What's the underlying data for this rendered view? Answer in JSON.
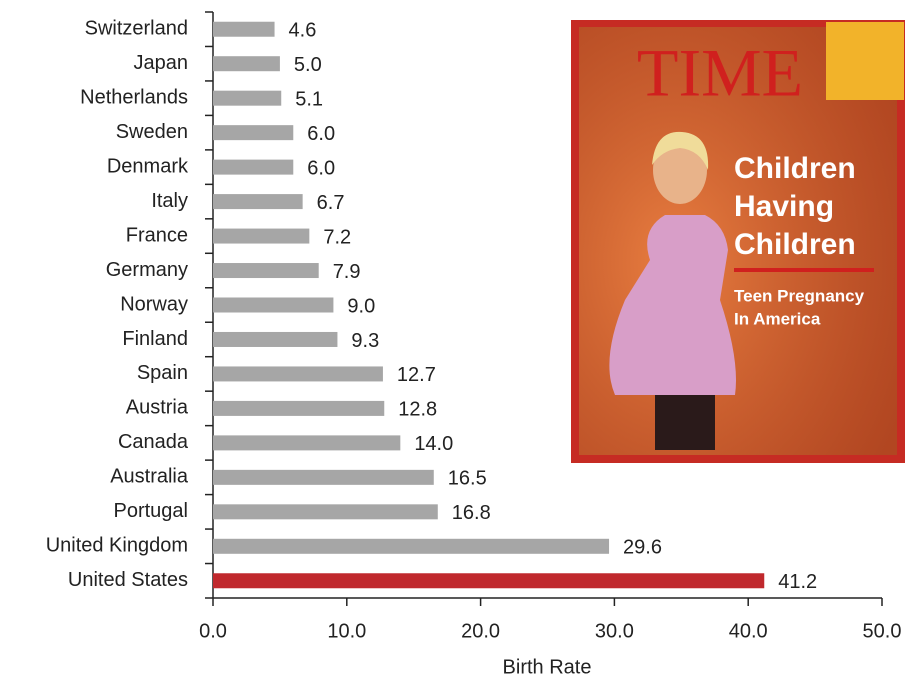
{
  "chart_data": {
    "type": "barh",
    "x_label": "Birth Rate",
    "categories": [
      "Switzerland",
      "Japan",
      "Netherlands",
      "Sweden",
      "Denmark",
      "Italy",
      "France",
      "Germany",
      "Norway",
      "Finland",
      "Spain",
      "Austria",
      "Canada",
      "Australia",
      "Portugal",
      "United Kingdom",
      "United States"
    ],
    "values": [
      4.6,
      5.0,
      5.1,
      6.0,
      6.0,
      6.7,
      7.2,
      7.9,
      9.0,
      9.3,
      12.7,
      12.8,
      14.0,
      16.5,
      16.8,
      29.6,
      41.2
    ],
    "value_labels": [
      "4.6",
      "5.0",
      "5.1",
      "6.0",
      "6.0",
      "6.7",
      "7.2",
      "7.9",
      "9.0",
      "9.3",
      "12.7",
      "12.8",
      "14.0",
      "16.5",
      "16.8",
      "29.6",
      "41.2"
    ],
    "colors": [
      "#a6a6a6",
      "#a6a6a6",
      "#a6a6a6",
      "#a6a6a6",
      "#a6a6a6",
      "#a6a6a6",
      "#a6a6a6",
      "#a6a6a6",
      "#a6a6a6",
      "#a6a6a6",
      "#a6a6a6",
      "#a6a6a6",
      "#a6a6a6",
      "#a6a6a6",
      "#a6a6a6",
      "#a6a6a6",
      "#c0282d"
    ],
    "xlim": [
      0,
      50
    ],
    "xticks": [
      {
        "value": 0,
        "label": "0.0"
      },
      {
        "value": 10,
        "label": "10.0"
      },
      {
        "value": 20,
        "label": "20.0"
      },
      {
        "value": 30,
        "label": "30.0"
      },
      {
        "value": 40,
        "label": "40.0"
      },
      {
        "value": 50,
        "label": "50.0"
      }
    ]
  },
  "cover": {
    "masthead": "TIME",
    "headline": [
      "Children",
      "Having",
      "Children"
    ],
    "subhead": [
      "Teen Pregnancy",
      "In America"
    ]
  }
}
